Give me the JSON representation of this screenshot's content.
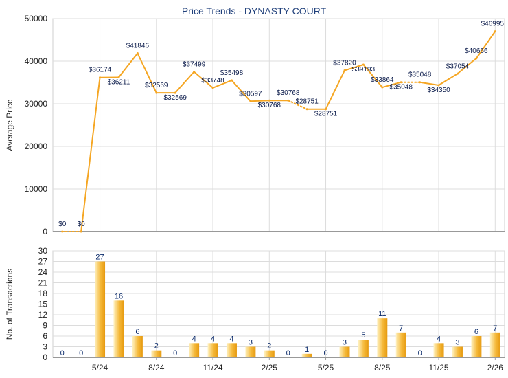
{
  "chart_data": {
    "type": "line+bar",
    "title": "Price Trends - DYNASTY COURT",
    "colors": {
      "line": "#f5a623",
      "bar_light": "#fff2c2",
      "bar_dark": "#e69a10",
      "grid": "#dcdcdc",
      "title": "#1f3f7a"
    },
    "x_tick_labels": [
      "5/24",
      "8/24",
      "11/24",
      "2/25",
      "5/25",
      "8/25",
      "11/25",
      "2/26"
    ],
    "price": {
      "ylabel": "Average Price",
      "ylim": [
        0,
        50000
      ],
      "yticks": [
        "0",
        "10000",
        "20000",
        "30000",
        "40000",
        "50000"
      ],
      "values": [
        0,
        0,
        36174,
        36211,
        41846,
        32569,
        32569,
        37499,
        33748,
        35498,
        30597,
        30768,
        30768,
        28751,
        28751,
        37820,
        39193,
        33864,
        35048,
        35048,
        34350,
        37054,
        40666,
        46995
      ],
      "labels": [
        "$0",
        "$0",
        "$36174",
        "$36211",
        "$41846",
        "$32569",
        "$32569",
        "$37499",
        "$33748",
        "$35498",
        "$30597",
        "$30768",
        "$30768",
        "$28751",
        "$28751",
        "$37820",
        "$39193",
        "$33864",
        "$35048",
        "$35048",
        "$34350",
        "$37054",
        "$40666",
        "$46995"
      ],
      "dotted_segments": [
        0,
        12,
        18
      ]
    },
    "transactions": {
      "ylabel": "No. of Transactions",
      "ylim": [
        0,
        30
      ],
      "yticks": [
        "0",
        "3",
        "6",
        "9",
        "12",
        "15",
        "18",
        "21",
        "24",
        "27",
        "30"
      ],
      "values": [
        0,
        0,
        27,
        16,
        6,
        2,
        0,
        4,
        4,
        4,
        3,
        2,
        0,
        1,
        0,
        3,
        5,
        11,
        7,
        0,
        4,
        3,
        6,
        7
      ],
      "labels": [
        "0",
        "0",
        "27",
        "16",
        "6",
        "2",
        "0",
        "4",
        "4",
        "4",
        "3",
        "2",
        "0",
        "1",
        "0",
        "3",
        "5",
        "11",
        "7",
        "0",
        "4",
        "3",
        "6",
        "7"
      ]
    }
  }
}
